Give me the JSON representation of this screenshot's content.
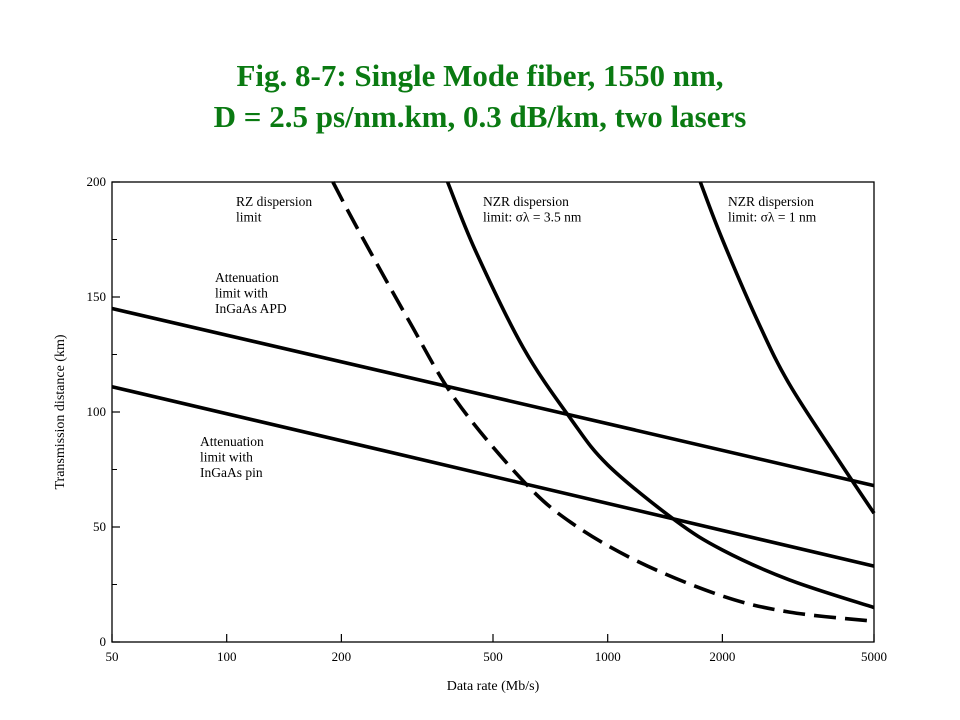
{
  "title_line1": "Fig. 8-7: Single Mode fiber, 1550 nm,",
  "title_line2": "D = 2.5 ps/nm.km,  0.3 dB/km,  two lasers",
  "chart_data": {
    "type": "line",
    "title": "Fig. 8-7: Single Mode fiber, 1550 nm, D = 2.5 ps/nm.km, 0.3 dB/km, two lasers",
    "xlabel": "Data rate (Mb/s)",
    "ylabel": "Transmission distance (km)",
    "xscale": "log",
    "xlim": [
      50,
      5000
    ],
    "ylim": [
      0,
      200
    ],
    "xticks": [
      50,
      100,
      200,
      500,
      1000,
      2000,
      5000
    ],
    "yticks": [
      0,
      50,
      100,
      150,
      200
    ],
    "grid": false,
    "series": [
      {
        "name": "Attenuation limit with InGaAs APD",
        "style": "solid",
        "x": [
          50,
          5000
        ],
        "y": [
          145,
          68
        ],
        "annotation": [
          "Attenuation",
          "limit with",
          "InGaAs APD"
        ]
      },
      {
        "name": "Attenuation limit with InGaAs pin",
        "style": "solid",
        "x": [
          50,
          5000
        ],
        "y": [
          111,
          33
        ],
        "annotation": [
          "Attenuation",
          "limit with",
          "InGaAs pin"
        ]
      },
      {
        "name": "RZ dispersion limit",
        "style": "dashed",
        "x": [
          190,
          220,
          300,
          400,
          600,
          800,
          1200,
          2000,
          3000,
          5000
        ],
        "y": [
          200,
          180,
          140,
          105,
          70,
          52,
          35,
          20,
          13,
          9
        ],
        "annotation": [
          "RZ dispersion",
          "limit"
        ]
      },
      {
        "name": "NZR dispersion limit: σλ = 3.5 nm",
        "style": "solid",
        "x": [
          380,
          450,
          600,
          800,
          1000,
          1500,
          2000,
          3000,
          5000
        ],
        "y": [
          200,
          170,
          128,
          97,
          77,
          53,
          40,
          27,
          15
        ],
        "annotation": [
          "NZR dispersion",
          "limit: σλ = 3.5 nm"
        ]
      },
      {
        "name": "NZR dispersion limit: σλ = 1 nm",
        "style": "solid",
        "x": [
          1750,
          2000,
          2500,
          3000,
          4000,
          5000
        ],
        "y": [
          200,
          175,
          138,
          112,
          80,
          56
        ],
        "annotation": [
          "NZR dispersion",
          "limit: σλ = 1 nm"
        ]
      }
    ]
  }
}
